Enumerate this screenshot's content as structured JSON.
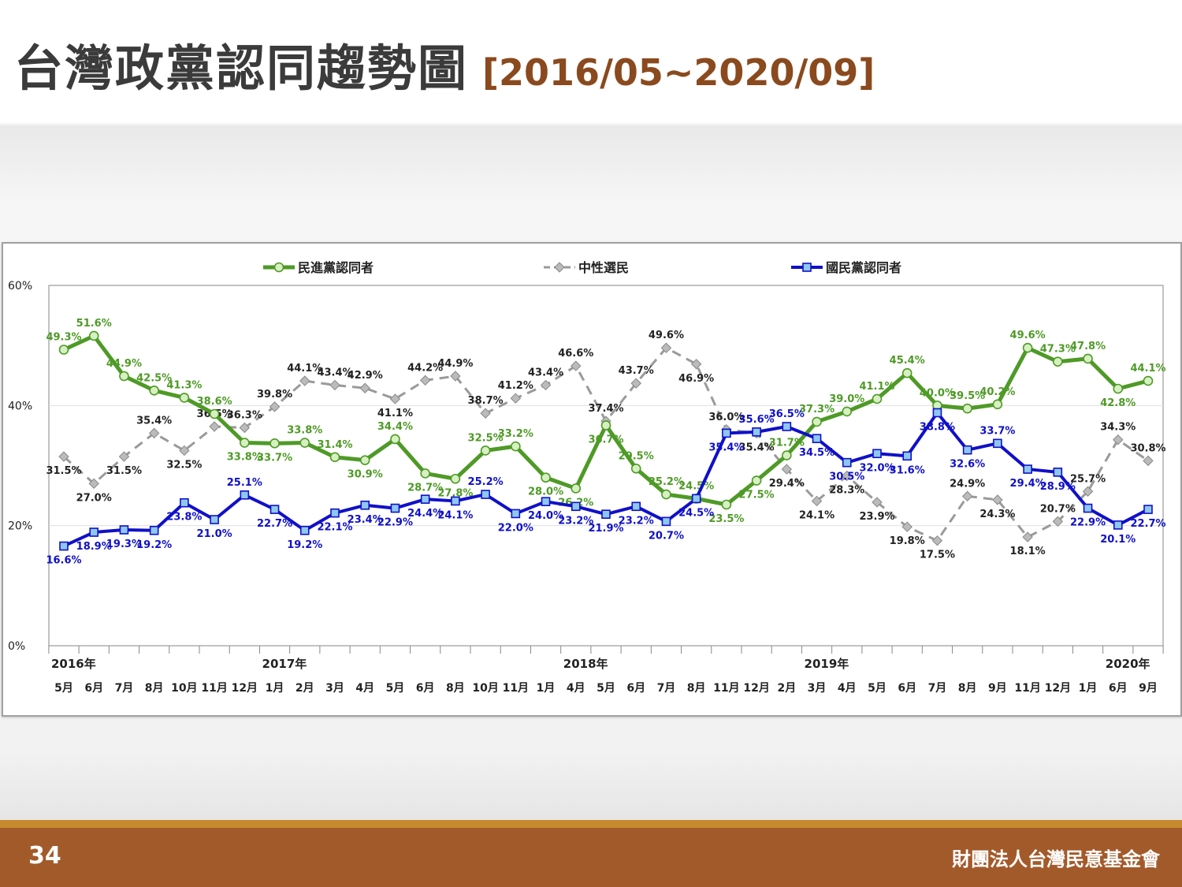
{
  "title": {
    "main": "台灣政黨認同趨勢圖",
    "range": "[2016/05~2020/09]"
  },
  "footer": {
    "page_number": "34",
    "org": "財團法人台灣民意基金會"
  },
  "colors": {
    "dpp": "#4e9a26",
    "neutral": "#9a9a9a",
    "kmt": "#1010c8",
    "footer": "#a35a2a",
    "footer_line": "#c68a2e"
  },
  "chart_data": {
    "type": "line",
    "title": "",
    "xlabel": "",
    "ylabel": "",
    "ylim": [
      0,
      60
    ],
    "yticks": [
      "0%",
      "20%",
      "40%",
      "60%"
    ],
    "year_labels": [
      {
        "label": "2016年",
        "index": 0
      },
      {
        "label": "2017年",
        "index": 7
      },
      {
        "label": "2018年",
        "index": 17
      },
      {
        "label": "2019年",
        "index": 25
      },
      {
        "label": "2020年",
        "index": 35
      }
    ],
    "categories": [
      "5月",
      "6月",
      "7月",
      "8月",
      "10月",
      "11月",
      "12月",
      "1月",
      "2月",
      "3月",
      "4月",
      "5月",
      "6月",
      "8月",
      "10月",
      "11月",
      "1月",
      "4月",
      "5月",
      "6月",
      "7月",
      "8月",
      "11月",
      "12月",
      "2月",
      "3月",
      "4月",
      "5月",
      "6月",
      "7月",
      "8月",
      "9月",
      "11月",
      "12月",
      "1月",
      "6月",
      "9月"
    ],
    "legend_position": "top",
    "grid": false,
    "series": [
      {
        "name": "民進黨認同者",
        "values": [
          49.3,
          51.6,
          44.9,
          42.5,
          41.3,
          38.6,
          33.8,
          33.7,
          33.8,
          31.4,
          30.9,
          34.4,
          28.7,
          27.8,
          32.5,
          33.2,
          28.0,
          26.2,
          36.7,
          29.5,
          25.2,
          24.5,
          23.5,
          27.5,
          31.7,
          37.3,
          39.0,
          41.1,
          45.4,
          40.0,
          39.5,
          40.2,
          49.6,
          47.3,
          47.8,
          42.8,
          44.1
        ],
        "labels": [
          "49.3%",
          "51.6%",
          "44.9%",
          "42.5%",
          "41.3%",
          "38.6%",
          "33.8%",
          "33.7%",
          "33.8%",
          "31.4%",
          "30.9%",
          "34.4%",
          "28.7%",
          "27.8%",
          "32.5%",
          "33.2%",
          "28.0%",
          "26.2%",
          "36.7%",
          "29.5%",
          "25.2%",
          "24.5%",
          "23.5%",
          "27.5%",
          "31.7%",
          "37.3%",
          "39.0%",
          "41.1%",
          "45.4%",
          "40.0%",
          "39.5%",
          "40.2%",
          "49.6%",
          "47.3%",
          "47.8%",
          "42.8%",
          "44.1%"
        ]
      },
      {
        "name": "中性選民",
        "values": [
          31.5,
          27.0,
          31.5,
          35.4,
          32.5,
          36.5,
          36.3,
          39.8,
          44.1,
          43.4,
          42.9,
          41.1,
          44.2,
          44.9,
          38.7,
          41.2,
          43.4,
          46.6,
          37.4,
          43.7,
          49.6,
          46.9,
          36.0,
          35.4,
          29.4,
          24.1,
          28.3,
          23.9,
          19.8,
          17.5,
          24.9,
          24.3,
          18.1,
          20.7,
          25.7,
          34.3,
          30.8
        ],
        "labels": [
          "31.5%",
          "27.0%",
          "31.5%",
          "35.4%",
          "32.5%",
          "36.5%",
          "36.3%",
          "39.8%",
          "44.1%",
          "43.4%",
          "42.9%",
          "41.1%",
          "44.2%",
          "44.9%",
          "38.7%",
          "41.2%",
          "43.4%",
          "46.6%",
          "37.4%",
          "43.7%",
          "49.6%",
          "46.9%",
          "36.0%",
          "35.4%",
          "29.4%",
          "24.1%",
          "28.3%",
          "23.9%",
          "19.8%",
          "17.5%",
          "24.9%",
          "24.3%",
          "18.1%",
          "20.7%",
          "25.7%",
          "34.3%",
          "30.8%"
        ]
      },
      {
        "name": "國民黨認同者",
        "values": [
          16.6,
          18.9,
          19.3,
          19.2,
          23.8,
          21.0,
          25.1,
          22.7,
          19.2,
          22.1,
          23.4,
          22.9,
          24.4,
          24.1,
          25.2,
          22.0,
          24.0,
          23.2,
          21.9,
          23.2,
          20.7,
          24.5,
          35.4,
          35.6,
          36.5,
          34.5,
          30.5,
          32.0,
          31.6,
          38.8,
          32.6,
          33.7,
          29.4,
          28.9,
          22.9,
          20.1,
          22.7
        ],
        "labels": [
          "16.6%",
          "18.9%",
          "19.3%",
          "19.2%",
          "23.8%",
          "21.0%",
          "25.1%",
          "22.7%",
          "19.2%",
          "22.1%",
          "23.4%",
          "22.9%",
          "24.4%",
          "24.1%",
          "25.2%",
          "22.0%",
          "24.0%",
          "23.2%",
          "21.9%",
          "23.2%",
          "20.7%",
          "24.5%",
          "35.4%",
          "35.6%",
          "36.5%",
          "34.5%",
          "30.5%",
          "32.0%",
          "31.6%",
          "38.8%",
          "32.6%",
          "33.7%",
          "29.4%",
          "28.9%",
          "22.9%",
          "20.1%",
          "22.7%"
        ]
      }
    ]
  }
}
